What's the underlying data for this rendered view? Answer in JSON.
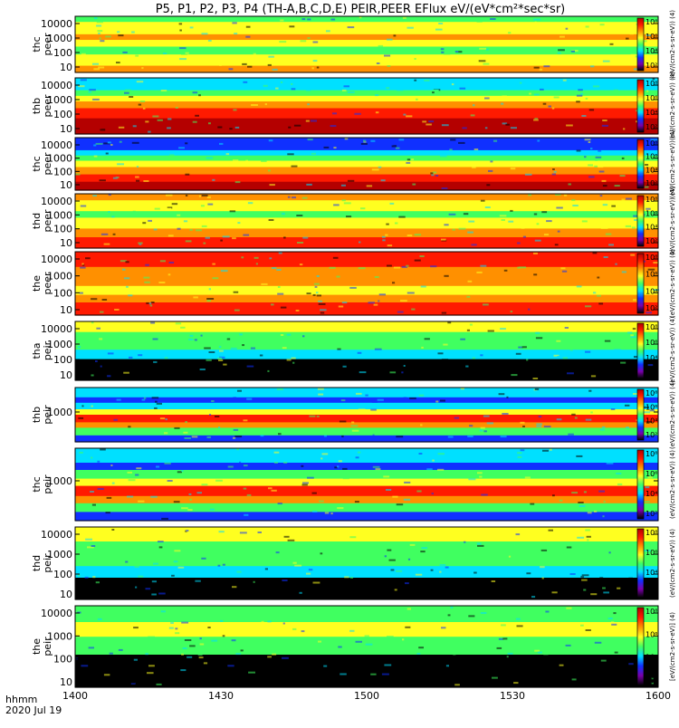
{
  "title": "P5, P1, P2, P3, P4 (TH-A,B,C,D,E) PEIR,PEER EFlux eV/(eV*cm²*sec*sr)",
  "footer": {
    "hhmm": "hhmm",
    "date": "2020 Jul 19"
  },
  "colorbar_label_short": "(eV/(cm2-s-sr-eV)) (4)",
  "colorbar_label_full": "[eV/(cm2-s-sr-eV)] (4)",
  "colors": {
    "black": "#000000",
    "purple": "#7a00a8",
    "blue": "#1030ff",
    "cyan": "#00e0ff",
    "green": "#40ff60",
    "yellow": "#ffff20",
    "orange": "#ff9000",
    "red": "#ff1a00",
    "darkred": "#b40000"
  },
  "chart_data": {
    "type": "heatmap",
    "x_ticks": [
      "1400",
      "1430",
      "1500",
      "1530",
      "1600"
    ],
    "xlim": [
      0,
      120
    ],
    "colorbar_ticks": [
      "10²",
      "10⁴",
      "10⁶",
      "10⁸"
    ],
    "panels": [
      {
        "label_top": "thc",
        "label_bottom": "peer",
        "y_ticks": [
          "10",
          "100",
          "1000",
          "10000"
        ],
        "bands": [
          {
            "c": "green",
            "w": 10
          },
          {
            "c": "yellow",
            "w": 22
          },
          {
            "c": "orange",
            "w": 10
          },
          {
            "c": "yellow",
            "w": 12
          },
          {
            "c": "green",
            "w": 14
          },
          {
            "c": "yellow",
            "w": 20
          },
          {
            "c": "orange",
            "w": 12
          }
        ]
      },
      {
        "label_top": "thb",
        "label_bottom": "peer",
        "y_ticks": [
          "10",
          "100",
          "1000",
          "10000"
        ],
        "bands": [
          {
            "c": "cyan",
            "w": 22
          },
          {
            "c": "green",
            "w": 10
          },
          {
            "c": "yellow",
            "w": 10
          },
          {
            "c": "orange",
            "w": 12
          },
          {
            "c": "red",
            "w": 18
          },
          {
            "c": "darkred",
            "w": 28
          }
        ]
      },
      {
        "label_top": "thc",
        "label_bottom": "peer",
        "y_ticks": [
          "10",
          "100",
          "1000",
          "10000"
        ],
        "bands": [
          {
            "c": "blue",
            "w": 24
          },
          {
            "c": "cyan",
            "w": 10
          },
          {
            "c": "green",
            "w": 10
          },
          {
            "c": "yellow",
            "w": 12
          },
          {
            "c": "orange",
            "w": 14
          },
          {
            "c": "red",
            "w": 14
          },
          {
            "c": "darkred",
            "w": 16
          }
        ]
      },
      {
        "label_top": "thd",
        "label_bottom": "peer",
        "y_ticks": [
          "10",
          "100",
          "1000",
          "10000"
        ],
        "bands": [
          {
            "c": "orange",
            "w": 12
          },
          {
            "c": "yellow",
            "w": 20
          },
          {
            "c": "green",
            "w": 12
          },
          {
            "c": "yellow",
            "w": 20
          },
          {
            "c": "orange",
            "w": 16
          },
          {
            "c": "red",
            "w": 20
          }
        ]
      },
      {
        "label_top": "the",
        "label_bottom": "peer",
        "y_ticks": [
          "10",
          "100",
          "1000",
          "10000"
        ],
        "bands": [
          {
            "c": "red",
            "w": 24
          },
          {
            "c": "orange",
            "w": 30
          },
          {
            "c": "yellow",
            "w": 14
          },
          {
            "c": "orange",
            "w": 12
          },
          {
            "c": "red",
            "w": 20
          }
        ]
      },
      {
        "label_top": "tha",
        "label_bottom": "peir",
        "y_ticks": [
          "10",
          "100",
          "1000",
          "10000"
        ],
        "bands": [
          {
            "c": "yellow",
            "w": 18
          },
          {
            "c": "green",
            "w": 30
          },
          {
            "c": "cyan",
            "w": 16
          },
          {
            "c": "black",
            "w": 36
          }
        ]
      },
      {
        "label_top": "thb",
        "label_bottom": "peir",
        "y_ticks": [
          "1000"
        ],
        "bands": [
          {
            "c": "cyan",
            "w": 18
          },
          {
            "c": "blue",
            "w": 10
          },
          {
            "c": "cyan",
            "w": 12
          },
          {
            "c": "yellow",
            "w": 10
          },
          {
            "c": "red",
            "w": 14
          },
          {
            "c": "orange",
            "w": 10
          },
          {
            "c": "green",
            "w": 14
          },
          {
            "c": "blue",
            "w": 12
          }
        ]
      },
      {
        "label_top": "thc",
        "label_bottom": "peir",
        "y_ticks": [
          "1000"
        ],
        "bands": [
          {
            "c": "cyan",
            "w": 20
          },
          {
            "c": "blue",
            "w": 10
          },
          {
            "c": "green",
            "w": 12
          },
          {
            "c": "yellow",
            "w": 10
          },
          {
            "c": "red",
            "w": 14
          },
          {
            "c": "orange",
            "w": 10
          },
          {
            "c": "green",
            "w": 12
          },
          {
            "c": "blue",
            "w": 12
          }
        ]
      },
      {
        "label_top": "thd",
        "label_bottom": "peir",
        "y_ticks": [
          "10",
          "100",
          "1000",
          "10000"
        ],
        "bands": [
          {
            "c": "yellow",
            "w": 20
          },
          {
            "c": "green",
            "w": 34
          },
          {
            "c": "cyan",
            "w": 16
          },
          {
            "c": "black",
            "w": 30
          }
        ]
      },
      {
        "label_top": "the",
        "label_bottom": "peir",
        "y_ticks": [
          "10",
          "100",
          "1000",
          "10000"
        ],
        "bands": [
          {
            "c": "green",
            "w": 20
          },
          {
            "c": "yellow",
            "w": 18
          },
          {
            "c": "green",
            "w": 22
          },
          {
            "c": "black",
            "w": 40
          }
        ]
      }
    ]
  }
}
